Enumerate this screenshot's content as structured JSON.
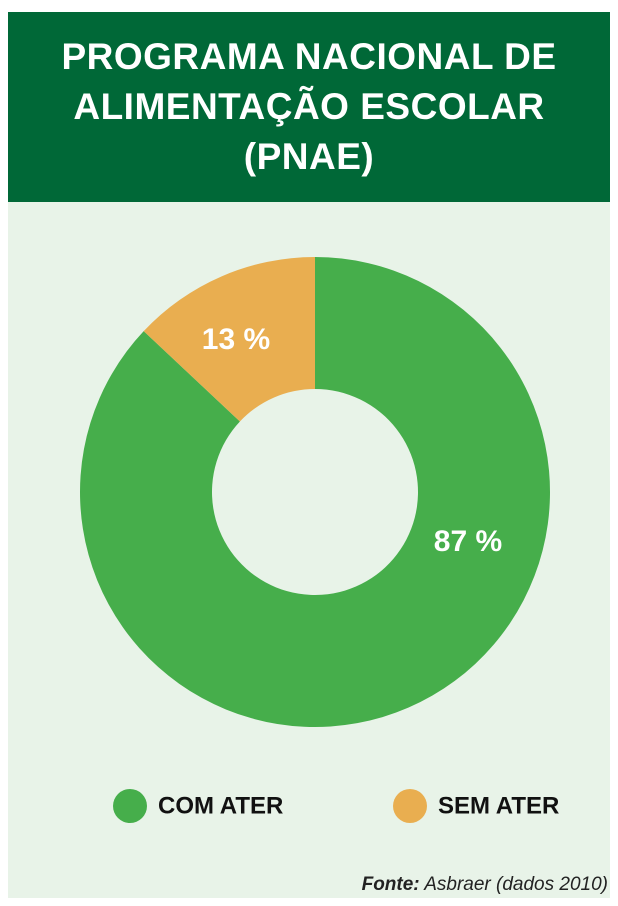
{
  "chart_data": {
    "type": "donut",
    "title": "PROGRAMA NACIONAL DE ALIMENTAÇÃO ESCOLAR (PNAE)",
    "categories": [
      "COM ATER",
      "SEM ATER"
    ],
    "values": [
      87,
      13
    ],
    "value_labels": [
      "87 %",
      "13 %"
    ],
    "colors": [
      "#46ae4b",
      "#e9ae50"
    ],
    "legend": "bottom",
    "source": {
      "label": "Fonte:",
      "text": "Asbraer (dados 2010)"
    }
  }
}
